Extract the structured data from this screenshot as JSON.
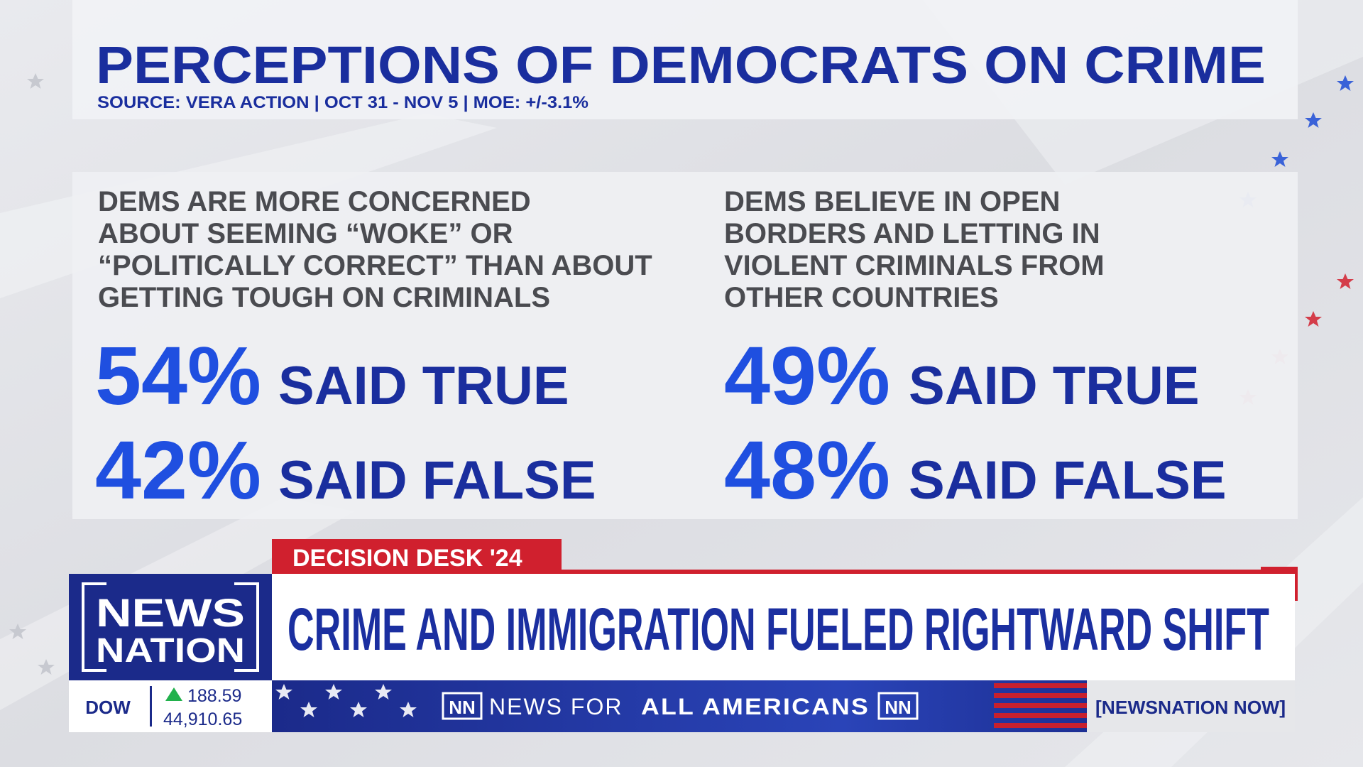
{
  "header": {
    "title": "PERCEPTIONS OF DEMOCRATS ON CRIME",
    "source": "SOURCE: VERA ACTION | OCT 31 - NOV 5 | MOE: +/-3.1%"
  },
  "panels": [
    {
      "statement_lines": [
        "DEMS ARE MORE CONCERNED",
        "ABOUT SEEMING “WOKE” OR",
        "“POLITICALLY CORRECT” THAN ABOUT",
        "GETTING TOUGH ON CRIMINALS"
      ],
      "results": [
        {
          "percent": "54%",
          "label": "SAID TRUE"
        },
        {
          "percent": "42%",
          "label": "SAID FALSE"
        }
      ]
    },
    {
      "statement_lines": [
        "DEMS BELIEVE IN OPEN",
        "BORDERS AND LETTING IN",
        "VIOLENT CRIMINALS FROM",
        "OTHER COUNTRIES"
      ],
      "results": [
        {
          "percent": "49%",
          "label": "SAID TRUE"
        },
        {
          "percent": "48%",
          "label": "SAID FALSE"
        }
      ]
    }
  ],
  "lower_third": {
    "tag": "DECISION DESK '24",
    "logo": [
      "NEWS",
      "NATION"
    ],
    "headline": "CRIME AND IMMIGRATION FUELED RIGHTWARD SHIFT"
  },
  "ticker": {
    "index": "DOW",
    "change": "188.59",
    "value": "44,910.65",
    "nn": "NN",
    "slogan_regular": "NEWS FOR",
    "slogan_bold": "ALL AMERICANS",
    "right": "[NEWSNATION NOW]"
  }
}
